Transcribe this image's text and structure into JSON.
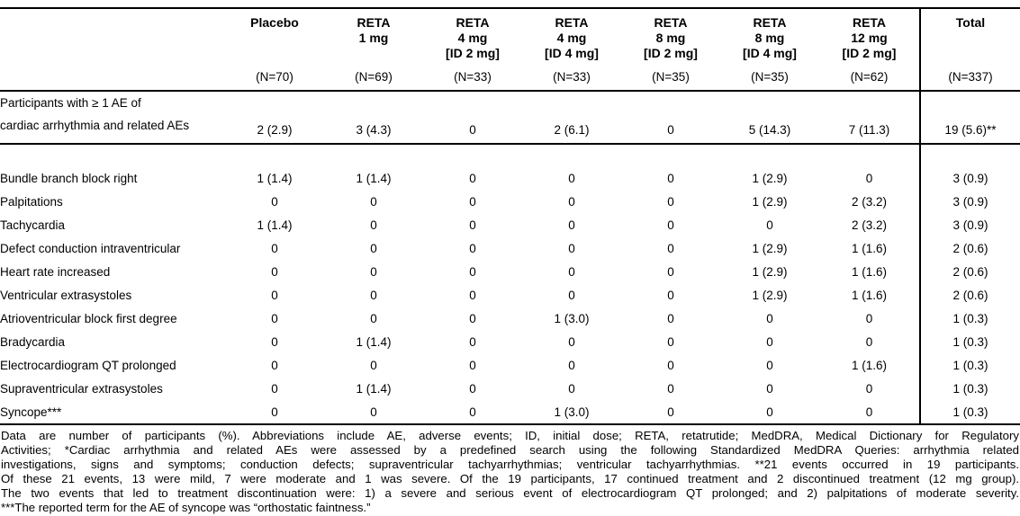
{
  "page": {
    "background": "#ffffff",
    "text_color": "#000000",
    "rule_color": "#000000"
  },
  "table": {
    "columns": [
      {
        "title_lines": [
          "Placebo"
        ],
        "n": "(N=70)"
      },
      {
        "title_lines": [
          "RETA",
          "1 mg"
        ],
        "n": "(N=69)"
      },
      {
        "title_lines": [
          "RETA",
          "4 mg",
          "[ID 2 mg]"
        ],
        "n": "(N=33)"
      },
      {
        "title_lines": [
          "RETA",
          "4 mg",
          "[ID 4 mg]"
        ],
        "n": "(N=33)"
      },
      {
        "title_lines": [
          "RETA",
          "8 mg",
          "[ID 2 mg]"
        ],
        "n": "(N=35)"
      },
      {
        "title_lines": [
          "RETA",
          "8 mg",
          "[ID 4 mg]"
        ],
        "n": "(N=35)"
      },
      {
        "title_lines": [
          "RETA",
          "12 mg",
          "[ID 2 mg]"
        ],
        "n": "(N=62)"
      },
      {
        "title_lines": [
          "Total"
        ],
        "n": "(N=337)"
      }
    ],
    "summary_row": {
      "label_lines": [
        "Participants with ≥ 1 AE of",
        "cardiac arrhythmia and related AEs"
      ],
      "values": [
        "2 (2.9)",
        "3 (4.3)",
        "0",
        "2 (6.1)",
        "0",
        "5 (14.3)",
        "7 (11.3)",
        "19 (5.6)**"
      ]
    },
    "rows": [
      {
        "label": "Bundle branch block right",
        "values": [
          "1 (1.4)",
          "1 (1.4)",
          "0",
          "0",
          "0",
          "1 (2.9)",
          "0",
          "3 (0.9)"
        ]
      },
      {
        "label": "Palpitations",
        "values": [
          "0",
          "0",
          "0",
          "0",
          "0",
          "1 (2.9)",
          "2 (3.2)",
          "3 (0.9)"
        ]
      },
      {
        "label": "Tachycardia",
        "values": [
          "1 (1.4)",
          "0",
          "0",
          "0",
          "0",
          "0",
          "2 (3.2)",
          "3 (0.9)"
        ]
      },
      {
        "label": "Defect conduction intraventricular",
        "values": [
          "0",
          "0",
          "0",
          "0",
          "0",
          "1 (2.9)",
          "1 (1.6)",
          "2 (0.6)"
        ]
      },
      {
        "label": "Heart rate increased",
        "values": [
          "0",
          "0",
          "0",
          "0",
          "0",
          "1 (2.9)",
          "1 (1.6)",
          "2 (0.6)"
        ]
      },
      {
        "label": "Ventricular extrasystoles",
        "values": [
          "0",
          "0",
          "0",
          "0",
          "0",
          "1 (2.9)",
          "1 (1.6)",
          "2 (0.6)"
        ]
      },
      {
        "label": "Atrioventricular block first degree",
        "values": [
          "0",
          "0",
          "0",
          "1 (3.0)",
          "0",
          "0",
          "0",
          "1 (0.3)"
        ]
      },
      {
        "label": "Bradycardia",
        "values": [
          "0",
          "1 (1.4)",
          "0",
          "0",
          "0",
          "0",
          "0",
          "1 (0.3)"
        ]
      },
      {
        "label": "Electrocardiogram QT prolonged",
        "values": [
          "0",
          "0",
          "0",
          "0",
          "0",
          "0",
          "1 (1.6)",
          "1 (0.3)"
        ]
      },
      {
        "label": "Supraventricular extrasystoles",
        "values": [
          "0",
          "1 (1.4)",
          "0",
          "0",
          "0",
          "0",
          "0",
          "1 (0.3)"
        ]
      },
      {
        "label": "Syncope***",
        "values": [
          "0",
          "0",
          "0",
          "1 (3.0)",
          "0",
          "0",
          "0",
          "1 (0.3)"
        ]
      }
    ]
  },
  "footnotes": {
    "lines": [
      "Data are number of participants (%). Abbreviations include AE, adverse events; ID, initial dose; RETA, retatrutide; MedDRA, Medical Dictionary for Regulatory",
      "Activities; *Cardiac arrhythmia and related AEs were assessed by a predefined search using the following Standardized MedDRA Queries: arrhythmia related",
      "investigations, signs and symptoms; conduction defects; supraventricular tachyarrhythmias; ventricular tachyarrhythmias.  **21 events occurred in 19 participants.",
      "Of these 21 events, 13 were mild, 7 were moderate and 1 was severe.  Of the 19 participants, 17 continued treatment and 2 discontinued treatment (12 mg group).",
      "The two events that led to treatment discontinuation were: 1) a severe and serious event of electrocardiogram QT prolonged; and 2) palpitations of moderate severity.",
      "***The reported term for the AE of syncope was “orthostatic faintness.”"
    ]
  }
}
